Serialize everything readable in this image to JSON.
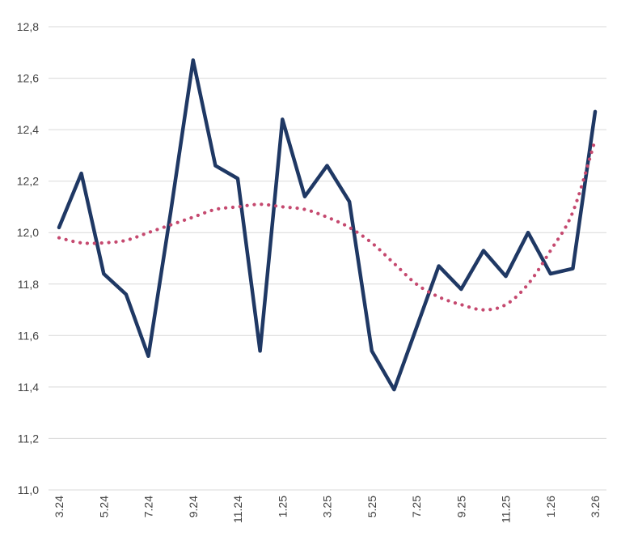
{
  "page": {
    "background": "#ffffff"
  },
  "chart_data": {
    "type": "line",
    "x": [
      "3.24",
      "4.24",
      "5.24",
      "6.24",
      "7.24",
      "8.24",
      "9.24",
      "10.24",
      "11.24",
      "12.24",
      "1.25",
      "2.25",
      "3.25",
      "4.25",
      "5.25",
      "6.25",
      "7.25",
      "8.25",
      "9.25",
      "10.25",
      "11.25",
      "12.25",
      "1.26",
      "2.26",
      "3.26"
    ],
    "x_tick_labels": [
      "3.24",
      "5.24",
      "7.24",
      "9.24",
      "11.24",
      "1.25",
      "3.25",
      "5.25",
      "7.25",
      "9.25",
      "11.25",
      "1.26",
      "3.26"
    ],
    "x_tick_every": 2,
    "series": [
      {
        "name": "monthly-values",
        "color": "#1f3864",
        "width": 4.5,
        "dash": "solid",
        "values": [
          12.02,
          12.23,
          11.84,
          11.76,
          11.52,
          12.08,
          12.67,
          12.26,
          12.21,
          11.54,
          12.44,
          12.14,
          12.26,
          12.12,
          11.54,
          11.39,
          11.63,
          11.87,
          11.78,
          11.93,
          11.83,
          12.0,
          11.84,
          11.86,
          12.47
        ]
      },
      {
        "name": "trend",
        "color": "#c5496f",
        "width": 4.2,
        "dash": "dotted",
        "values": [
          11.98,
          11.96,
          11.96,
          11.97,
          12.0,
          12.03,
          12.06,
          12.09,
          12.1,
          12.11,
          12.1,
          12.09,
          12.06,
          12.02,
          11.96,
          11.88,
          11.8,
          11.75,
          11.72,
          11.7,
          11.72,
          11.8,
          11.93,
          12.08,
          12.36
        ]
      }
    ],
    "ylim": [
      11.0,
      12.8
    ],
    "y_tick_step": 0.2,
    "y_tick_labels": [
      "11,0",
      "11,2",
      "11,4",
      "11,6",
      "11,8",
      "12,0",
      "12,2",
      "12,4",
      "12,6",
      "12,8"
    ],
    "grid": true,
    "gridline_color": "#d9d9d9",
    "axis_label_color": "#3f3f3f",
    "legend": "none"
  }
}
